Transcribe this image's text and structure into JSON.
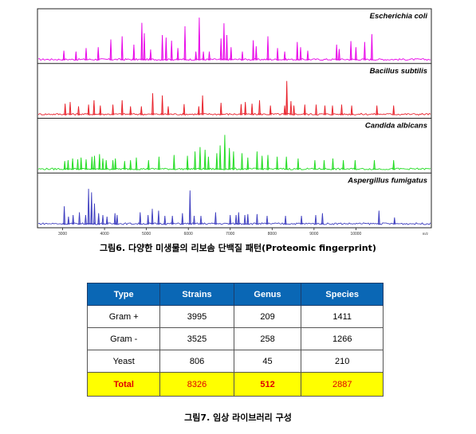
{
  "chart_data": {
    "type": "line",
    "x_ticks": [
      "3000",
      "4000",
      "5000",
      "6000",
      "7000",
      "8000",
      "9000",
      "10000"
    ],
    "x_unit": "m/z",
    "series": [
      {
        "name": "Escherichia coli",
        "color": "#e800e8",
        "peaks": [
          [
            3030,
            0.22
          ],
          [
            3320,
            0.2
          ],
          [
            3560,
            0.28
          ],
          [
            3850,
            0.3
          ],
          [
            4150,
            0.48
          ],
          [
            4420,
            0.55
          ],
          [
            4700,
            0.36
          ],
          [
            4890,
            0.86
          ],
          [
            4950,
            0.62
          ],
          [
            5100,
            0.25
          ],
          [
            5380,
            0.58
          ],
          [
            5470,
            0.52
          ],
          [
            5600,
            0.45
          ],
          [
            5750,
            0.28
          ],
          [
            5920,
            0.78
          ],
          [
            6180,
            0.2
          ],
          [
            6260,
            0.98
          ],
          [
            6360,
            0.2
          ],
          [
            6500,
            0.2
          ],
          [
            6780,
            0.5
          ],
          [
            6850,
            0.85
          ],
          [
            6920,
            0.58
          ],
          [
            7020,
            0.3
          ],
          [
            7290,
            0.2
          ],
          [
            7550,
            0.46
          ],
          [
            7620,
            0.32
          ],
          [
            7900,
            0.55
          ],
          [
            8130,
            0.28
          ],
          [
            8300,
            0.2
          ],
          [
            8600,
            0.42
          ],
          [
            8680,
            0.3
          ],
          [
            8850,
            0.22
          ],
          [
            9540,
            0.36
          ],
          [
            9600,
            0.26
          ],
          [
            9880,
            0.44
          ],
          [
            10000,
            0.3
          ],
          [
            10210,
            0.42
          ],
          [
            10380,
            0.6
          ]
        ]
      },
      {
        "name": "Bacillus subtilis",
        "color": "#e8202a",
        "peaks": [
          [
            3060,
            0.26
          ],
          [
            3180,
            0.3
          ],
          [
            3380,
            0.2
          ],
          [
            3620,
            0.24
          ],
          [
            3750,
            0.34
          ],
          [
            3900,
            0.22
          ],
          [
            4200,
            0.24
          ],
          [
            4420,
            0.34
          ],
          [
            4620,
            0.2
          ],
          [
            4880,
            0.2
          ],
          [
            5150,
            0.5
          ],
          [
            5380,
            0.45
          ],
          [
            5520,
            0.2
          ],
          [
            5900,
            0.25
          ],
          [
            6250,
            0.2
          ],
          [
            6340,
            0.45
          ],
          [
            6780,
            0.28
          ],
          [
            7260,
            0.25
          ],
          [
            7360,
            0.3
          ],
          [
            7520,
            0.26
          ],
          [
            7700,
            0.34
          ],
          [
            7960,
            0.22
          ],
          [
            8300,
            0.22
          ],
          [
            8350,
            0.78
          ],
          [
            8450,
            0.32
          ],
          [
            8520,
            0.22
          ],
          [
            8780,
            0.24
          ],
          [
            9050,
            0.24
          ],
          [
            9260,
            0.22
          ],
          [
            9440,
            0.22
          ],
          [
            9660,
            0.24
          ],
          [
            9900,
            0.22
          ],
          [
            10500,
            0.22
          ],
          [
            10900,
            0.22
          ]
        ]
      },
      {
        "name": "Candida albicans",
        "color": "#20dc20",
        "peaks": [
          [
            3050,
            0.2
          ],
          [
            3130,
            0.22
          ],
          [
            3240,
            0.26
          ],
          [
            3360,
            0.24
          ],
          [
            3440,
            0.28
          ],
          [
            3560,
            0.24
          ],
          [
            3700,
            0.3
          ],
          [
            3760,
            0.32
          ],
          [
            3880,
            0.36
          ],
          [
            3960,
            0.26
          ],
          [
            4040,
            0.22
          ],
          [
            4200,
            0.22
          ],
          [
            4260,
            0.26
          ],
          [
            4480,
            0.2
          ],
          [
            4620,
            0.22
          ],
          [
            4760,
            0.28
          ],
          [
            5050,
            0.22
          ],
          [
            5300,
            0.3
          ],
          [
            5660,
            0.34
          ],
          [
            5980,
            0.32
          ],
          [
            6160,
            0.42
          ],
          [
            6280,
            0.52
          ],
          [
            6400,
            0.46
          ],
          [
            6480,
            0.3
          ],
          [
            6680,
            0.38
          ],
          [
            6760,
            0.56
          ],
          [
            6870,
            0.8
          ],
          [
            6980,
            0.5
          ],
          [
            7080,
            0.42
          ],
          [
            7280,
            0.38
          ],
          [
            7420,
            0.28
          ],
          [
            7640,
            0.42
          ],
          [
            7760,
            0.32
          ],
          [
            7900,
            0.34
          ],
          [
            8120,
            0.3
          ],
          [
            8340,
            0.3
          ],
          [
            8620,
            0.26
          ],
          [
            9020,
            0.22
          ],
          [
            9240,
            0.22
          ],
          [
            9450,
            0.26
          ],
          [
            9700,
            0.22
          ],
          [
            9980,
            0.22
          ],
          [
            10440,
            0.22
          ],
          [
            10900,
            0.22
          ]
        ]
      },
      {
        "name": "Aspergillus fumigatus",
        "color": "#4040c0",
        "peaks": [
          [
            3040,
            0.42
          ],
          [
            3140,
            0.18
          ],
          [
            3250,
            0.22
          ],
          [
            3400,
            0.28
          ],
          [
            3550,
            0.22
          ],
          [
            3620,
            0.82
          ],
          [
            3690,
            0.74
          ],
          [
            3760,
            0.48
          ],
          [
            3860,
            0.26
          ],
          [
            3960,
            0.22
          ],
          [
            4060,
            0.18
          ],
          [
            4250,
            0.26
          ],
          [
            4300,
            0.22
          ],
          [
            4850,
            0.28
          ],
          [
            5040,
            0.22
          ],
          [
            5140,
            0.36
          ],
          [
            5290,
            0.32
          ],
          [
            5440,
            0.2
          ],
          [
            5620,
            0.2
          ],
          [
            5860,
            0.26
          ],
          [
            6040,
            0.78
          ],
          [
            6140,
            0.2
          ],
          [
            6300,
            0.2
          ],
          [
            6650,
            0.28
          ],
          [
            7000,
            0.22
          ],
          [
            7140,
            0.22
          ],
          [
            7200,
            0.28
          ],
          [
            7350,
            0.22
          ],
          [
            7420,
            0.24
          ],
          [
            7640,
            0.24
          ],
          [
            7880,
            0.2
          ],
          [
            8320,
            0.2
          ],
          [
            8700,
            0.2
          ],
          [
            9040,
            0.22
          ],
          [
            9200,
            0.26
          ],
          [
            10550,
            0.32
          ],
          [
            10920,
            0.16
          ]
        ]
      }
    ]
  },
  "caption6": "그림6. 다양한 미생물의 리보솜 단백질 패턴(Proteomic fingerprint)",
  "table": {
    "headers": [
      "Type",
      "Strains",
      "Genus",
      "Species"
    ],
    "rows": [
      [
        "Gram +",
        "3995",
        "209",
        "1411"
      ],
      [
        "Gram -",
        "3525",
        "258",
        "1266"
      ],
      [
        "Yeast",
        "806",
        "45",
        "210"
      ]
    ],
    "total": [
      "Total",
      "8326",
      "512",
      "2887"
    ]
  },
  "caption7": "그림7. 임상 라이브러리 구성"
}
